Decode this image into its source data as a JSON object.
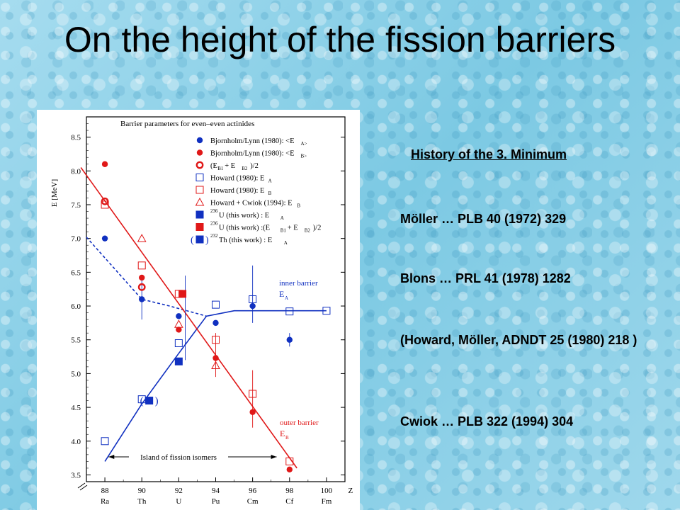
{
  "title": "On the height of the fission barriers",
  "notes": {
    "heading": "History of the 3. Minimum",
    "refs": [
      "Möller … PLB 40 (1972) 329",
      "Blons … PRL 41 (1978) 1282",
      "(Howard, Möller, ADNDT 25 (1980) 218 )",
      "Cwiok … PLB 322 (1994) 304"
    ]
  },
  "chart_data": {
    "type": "scatter",
    "title": "Barrier parameters for even–even actinides",
    "ylabel": "E [MeV]",
    "xlabel": "Z",
    "ylim": [
      3.4,
      8.8
    ],
    "xlim": [
      87,
      101
    ],
    "xticks": [
      88,
      90,
      92,
      94,
      96,
      98,
      100
    ],
    "xtick_elements": [
      "Ra",
      "Th",
      "U",
      "Pu",
      "Cm",
      "Cf",
      "Fm"
    ],
    "yticks": [
      3.5,
      4.0,
      4.5,
      5.0,
      5.5,
      6.0,
      6.5,
      7.0,
      7.5,
      8.0,
      8.5
    ],
    "series": [
      {
        "name": "Bjornholm/Lynn (1980): <EA>",
        "color": "#1030c0",
        "marker": "filled-circle",
        "points": [
          [
            88,
            7.0
          ],
          [
            90,
            6.1
          ],
          [
            92,
            5.85
          ],
          [
            94,
            5.75
          ],
          [
            96,
            6.0
          ],
          [
            98,
            5.5
          ]
        ]
      },
      {
        "name": "Bjornholm/Lynn (1980): <EB>",
        "color": "#e01818",
        "marker": "filled-circle",
        "points": [
          [
            88,
            8.1
          ],
          [
            90,
            6.42
          ],
          [
            92,
            5.65
          ],
          [
            94,
            5.23
          ],
          [
            96,
            4.43
          ],
          [
            98,
            3.58
          ]
        ]
      },
      {
        "name": "(EB1 + EB2)/2",
        "color": "#e01818",
        "marker": "ring",
        "points": [
          [
            88,
            7.55
          ],
          [
            90,
            6.28
          ]
        ]
      },
      {
        "name": "Howard (1980): EA",
        "color": "#1030c0",
        "marker": "open-square",
        "points": [
          [
            88,
            4.0
          ],
          [
            90,
            4.62
          ],
          [
            92,
            5.45
          ],
          [
            94,
            6.02
          ],
          [
            96,
            6.1
          ],
          [
            98,
            5.92
          ],
          [
            100,
            5.93
          ]
        ]
      },
      {
        "name": "Howard (1980): EB",
        "color": "#e01818",
        "marker": "open-square",
        "points": [
          [
            88,
            7.5
          ],
          [
            90,
            6.6
          ],
          [
            92,
            6.18
          ],
          [
            94,
            5.5
          ],
          [
            96,
            4.7
          ],
          [
            98,
            3.7
          ]
        ]
      },
      {
        "name": "Howard + Cwiok (1994): EB",
        "color": "#e01818",
        "marker": "open-triangle",
        "points": [
          [
            90,
            7.0
          ],
          [
            92,
            5.73
          ],
          [
            94,
            5.12
          ]
        ]
      },
      {
        "name": "236U (this work) : EA",
        "color": "#1030c0",
        "marker": "filled-square",
        "points": [
          [
            92,
            5.18
          ]
        ]
      },
      {
        "name": "236U (this work) :(EB1 + EB2)/2",
        "color": "#e01818",
        "marker": "filled-square",
        "points": [
          [
            92.2,
            6.18
          ]
        ]
      },
      {
        "name": "232Th (this work) : EA",
        "color": "#1030c0",
        "marker": "filled-square-paren",
        "points": [
          [
            90.4,
            4.6
          ]
        ]
      }
    ],
    "lines": [
      {
        "name": "inner barrier EA",
        "color": "#1030c0",
        "style": "solid",
        "points": [
          [
            88,
            3.7
          ],
          [
            90,
            4.55
          ],
          [
            92,
            5.3
          ],
          [
            93.5,
            5.85
          ],
          [
            95,
            5.93
          ],
          [
            100,
            5.93
          ]
        ]
      },
      {
        "name": "inner barrier EA (dashed)",
        "color": "#1030c0",
        "style": "dashed",
        "points": [
          [
            87,
            7.02
          ],
          [
            90,
            6.1
          ],
          [
            91.5,
            6.0
          ],
          [
            93.5,
            5.85
          ]
        ]
      },
      {
        "name": "outer barrier EB",
        "color": "#e01818",
        "style": "solid",
        "points": [
          [
            86.7,
            8.05
          ],
          [
            98.4,
            3.6
          ]
        ]
      }
    ],
    "annotations": {
      "inner_label": "inner barrier",
      "inner_sub": "E",
      "inner_sub_index": "A",
      "outer_label": "outer barrier",
      "outer_sub": "E",
      "outer_sub_index": "B",
      "island": "Island of fission isomers"
    },
    "legend_labels": [
      "Bjornholm/Lynn (1980): <E",
      "Bjornholm/Lynn (1980): <E",
      "(E",
      "Howard (1980): E",
      "Howard (1980): E",
      "Howard + Cwiok (1994): E",
      "U (this work) : E",
      "U (this work) :(E",
      "Th (this work) : E"
    ],
    "legend_placement": "top-right"
  }
}
